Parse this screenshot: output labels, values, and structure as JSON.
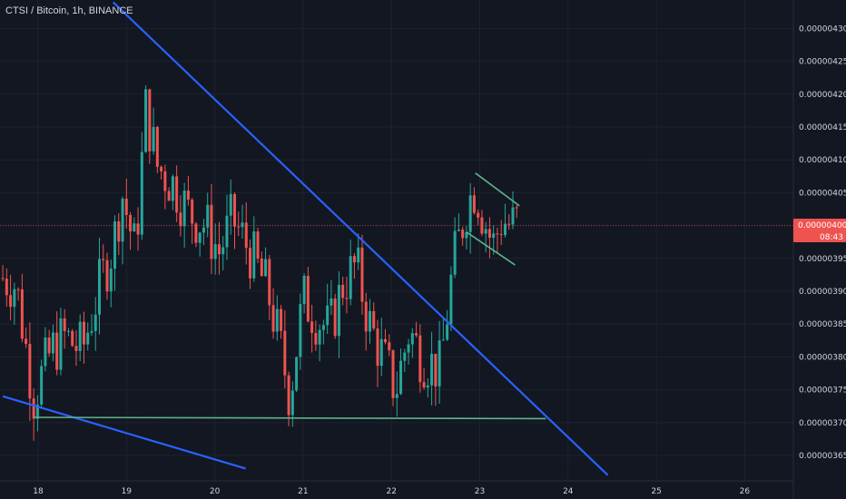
{
  "header": {
    "symbol_line": "CTSI / Bitcoin, 1h, BINANCE"
  },
  "colors": {
    "background": "#131722",
    "grid": "#1e222d",
    "up": "#26a69a",
    "down": "#ef5350",
    "trendline_blue": "#2962ff",
    "trendline_green": "#5fb38a",
    "price_tag": "#ef5350"
  },
  "last_price": {
    "value": 4e-06,
    "label": "0.00000400",
    "countdown": "08:43"
  },
  "chart_data": {
    "type": "candlestick",
    "title": "",
    "xlabel": "",
    "ylabel": "",
    "x_ticks": [
      "18",
      "19",
      "20",
      "21",
      "22",
      "23",
      "24",
      "25",
      "26"
    ],
    "x_range_days": [
      17.6,
      26.5
    ],
    "y_ticks": [
      "0.00000365",
      "0.00000370",
      "0.00000375",
      "0.00000380",
      "0.00000385",
      "0.00000390",
      "0.00000395",
      "0.00000400",
      "0.00000405",
      "0.00000410",
      "0.00000415",
      "0.00000420",
      "0.00000425",
      "0.00000430"
    ],
    "ylim": [
      3.615e-06,
      4.335e-06
    ],
    "grid": true,
    "candles_close_path": [
      [
        17.6,
        3.92e-06
      ],
      [
        17.75,
        3.91e-06
      ],
      [
        17.95,
        3.74e-06
      ],
      [
        18.15,
        3.81e-06
      ],
      [
        18.3,
        3.83e-06
      ],
      [
        18.5,
        3.81e-06
      ],
      [
        18.7,
        3.91e-06
      ],
      [
        18.85,
        3.97e-06
      ],
      [
        18.95,
        4.05e-06
      ],
      [
        19.1,
        3.96e-06
      ],
      [
        19.22,
        4.18e-06
      ],
      [
        19.35,
        4.09e-06
      ],
      [
        19.55,
        4.06e-06
      ],
      [
        19.7,
        4.02e-06
      ],
      [
        19.9,
        4e-06
      ],
      [
        20.05,
        3.96e-06
      ],
      [
        20.2,
        4.01e-06
      ],
      [
        20.4,
        3.96e-06
      ],
      [
        20.6,
        3.9e-06
      ],
      [
        20.75,
        3.81e-06
      ],
      [
        20.85,
        3.74e-06
      ],
      [
        21.0,
        3.89e-06
      ],
      [
        21.15,
        3.86e-06
      ],
      [
        21.3,
        3.84e-06
      ],
      [
        21.45,
        3.91e-06
      ],
      [
        21.6,
        3.94e-06
      ],
      [
        21.75,
        3.85e-06
      ],
      [
        21.9,
        3.8e-06
      ],
      [
        22.05,
        3.75e-06
      ],
      [
        22.2,
        3.84e-06
      ],
      [
        22.35,
        3.8e-06
      ],
      [
        22.55,
        3.78e-06
      ],
      [
        22.7,
        3.94e-06
      ],
      [
        22.85,
        4.03e-06
      ],
      [
        22.95,
        4.06e-06
      ],
      [
        23.05,
        4.01e-06
      ],
      [
        23.15,
        3.97e-06
      ],
      [
        23.25,
        4.01e-06
      ],
      [
        23.35,
        4e-06
      ],
      [
        23.45,
        4.01e-06
      ]
    ],
    "trendlines": [
      {
        "name": "",
        "color": "blue",
        "points": [
          [
            18.85,
            4.34e-06
          ],
          [
            24.45,
            3.62e-06
          ]
        ]
      },
      {
        "name": "",
        "color": "blue",
        "points": [
          [
            17.6,
            3.74e-06
          ],
          [
            20.35,
            3.63e-06
          ]
        ]
      },
      {
        "name": "",
        "color": "green",
        "points": [
          [
            17.95,
            3.708e-06
          ],
          [
            23.75,
            3.706e-06
          ]
        ]
      },
      {
        "name": "",
        "color": "green",
        "points": [
          [
            22.95,
            4.08e-06
          ],
          [
            23.45,
            4.03e-06
          ]
        ]
      },
      {
        "name": "",
        "color": "green",
        "points": [
          [
            22.85,
            3.99e-06
          ],
          [
            23.4,
            3.94e-06
          ]
        ]
      }
    ]
  }
}
